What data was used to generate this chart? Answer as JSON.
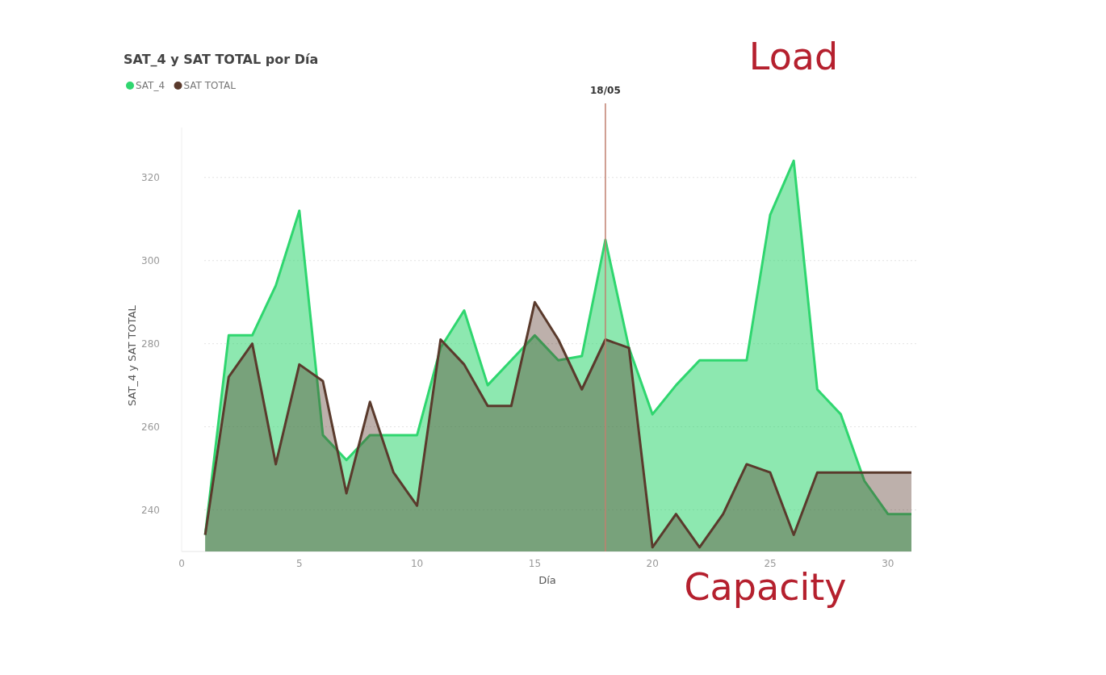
{
  "chart_data": {
    "type": "area",
    "title": "SAT_4 y SAT TOTAL por Día",
    "xlabel": "Día",
    "ylabel": "SAT_4 y SAT TOTAL",
    "x": [
      1,
      2,
      3,
      4,
      5,
      6,
      7,
      8,
      9,
      10,
      11,
      12,
      13,
      14,
      15,
      16,
      17,
      18,
      19,
      20,
      21,
      22,
      23,
      24,
      25,
      26,
      27,
      28,
      29,
      30,
      31
    ],
    "series": [
      {
        "name": "SAT_4",
        "color": "#2fd66f",
        "values": [
          234,
          282,
          282,
          294,
          312,
          258,
          252,
          258,
          258,
          258,
          279,
          288,
          270,
          276,
          282,
          276,
          277,
          305,
          279,
          263,
          270,
          276,
          276,
          276,
          311,
          324,
          269,
          263,
          247,
          239,
          239
        ]
      },
      {
        "name": "SAT TOTAL",
        "color": "#5a3a2c",
        "values": [
          234,
          272,
          280,
          251,
          275,
          271,
          244,
          266,
          249,
          241,
          281,
          275,
          265,
          265,
          290,
          281,
          269,
          281,
          279,
          231,
          239,
          231,
          239,
          251,
          249,
          234,
          249,
          249,
          249,
          249,
          249
        ]
      }
    ],
    "xlim": [
      0,
      31
    ],
    "xticks": [
      0,
      5,
      10,
      15,
      20,
      25,
      30
    ],
    "ylim": [
      230,
      332
    ],
    "yticks": [
      240,
      260,
      280,
      300,
      320
    ],
    "grid": "y",
    "legend": "top left",
    "marker": "none",
    "ref_lines": [
      {
        "axis": "x",
        "value": 18,
        "label": "18/05",
        "color": "#c0806f"
      }
    ],
    "annotations": [
      "Load",
      "Capacity"
    ]
  }
}
